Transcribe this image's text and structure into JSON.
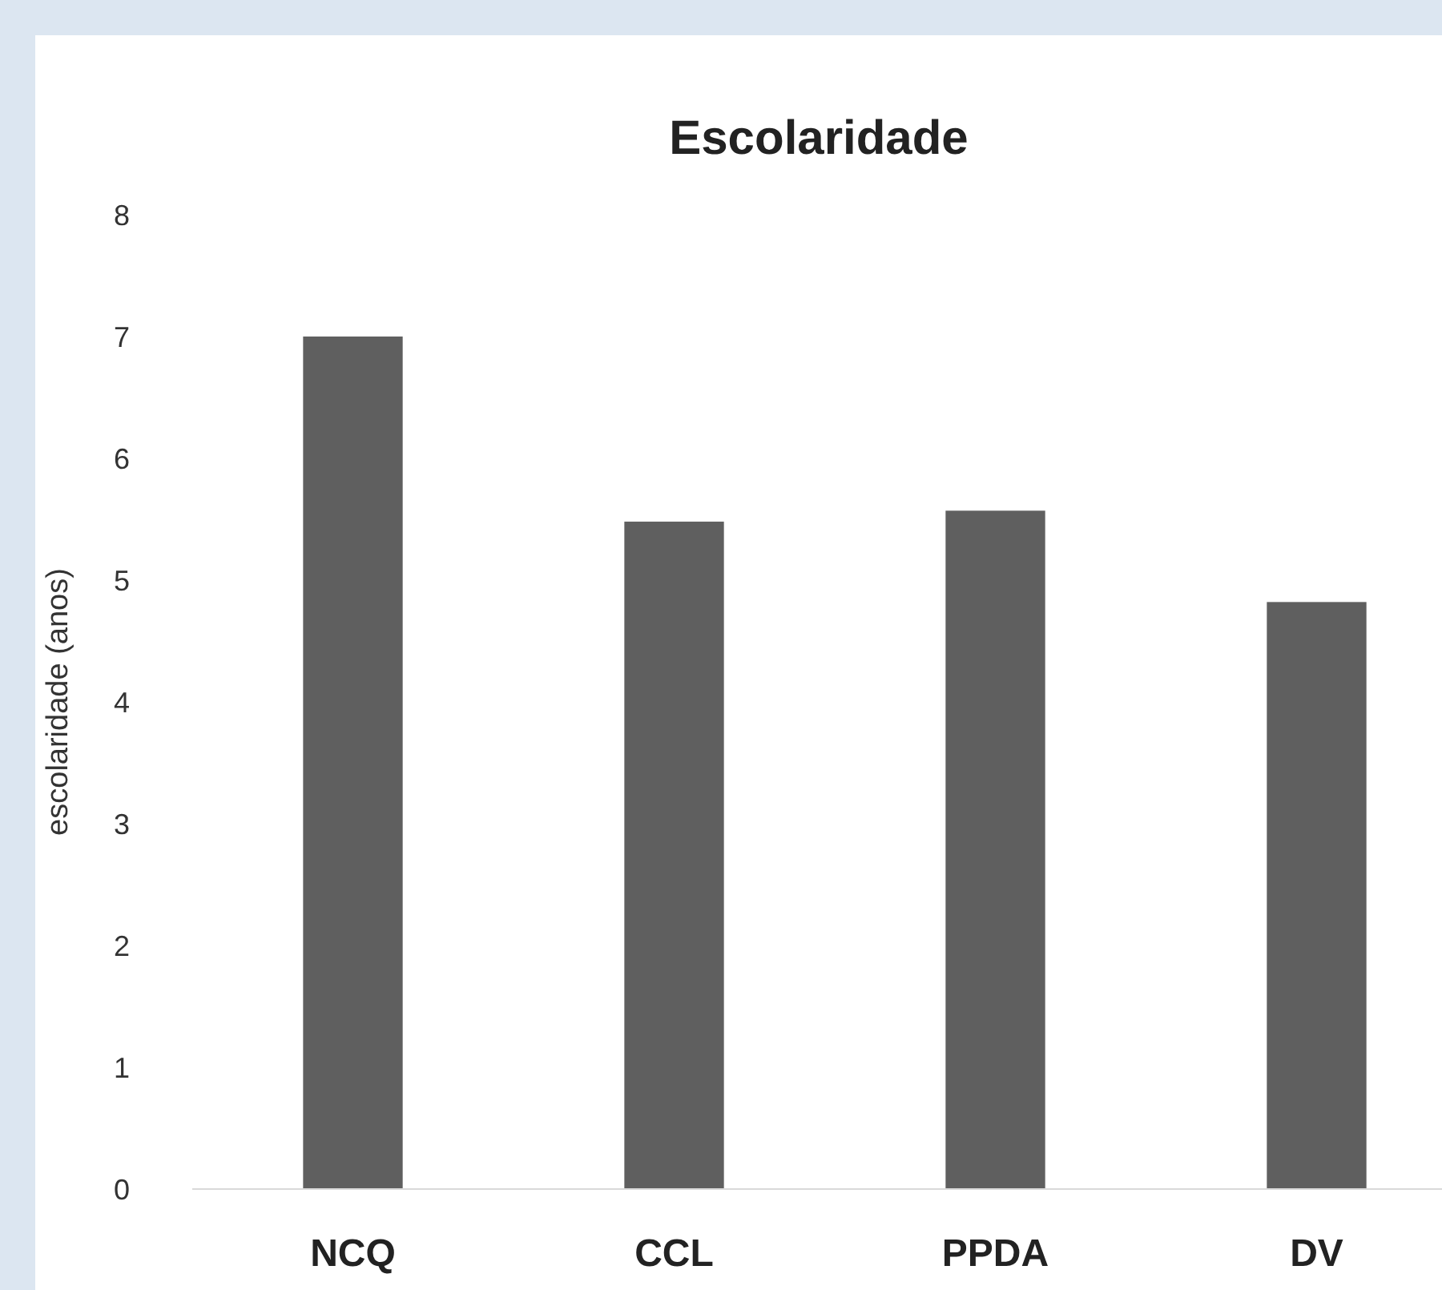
{
  "chart_data": {
    "type": "bar",
    "title": "Escolaridade",
    "ylabel": "escolaridade (anos)",
    "categories": [
      "NCQ",
      "CCL",
      "PPDA",
      "DV"
    ],
    "values": [
      7.0,
      5.48,
      5.57,
      4.82
    ],
    "color": "#5f5f5f",
    "ylim": [
      0,
      8
    ],
    "yticks": [
      0,
      1,
      2,
      3,
      4,
      5,
      6,
      7,
      8
    ],
    "grid": false
  }
}
